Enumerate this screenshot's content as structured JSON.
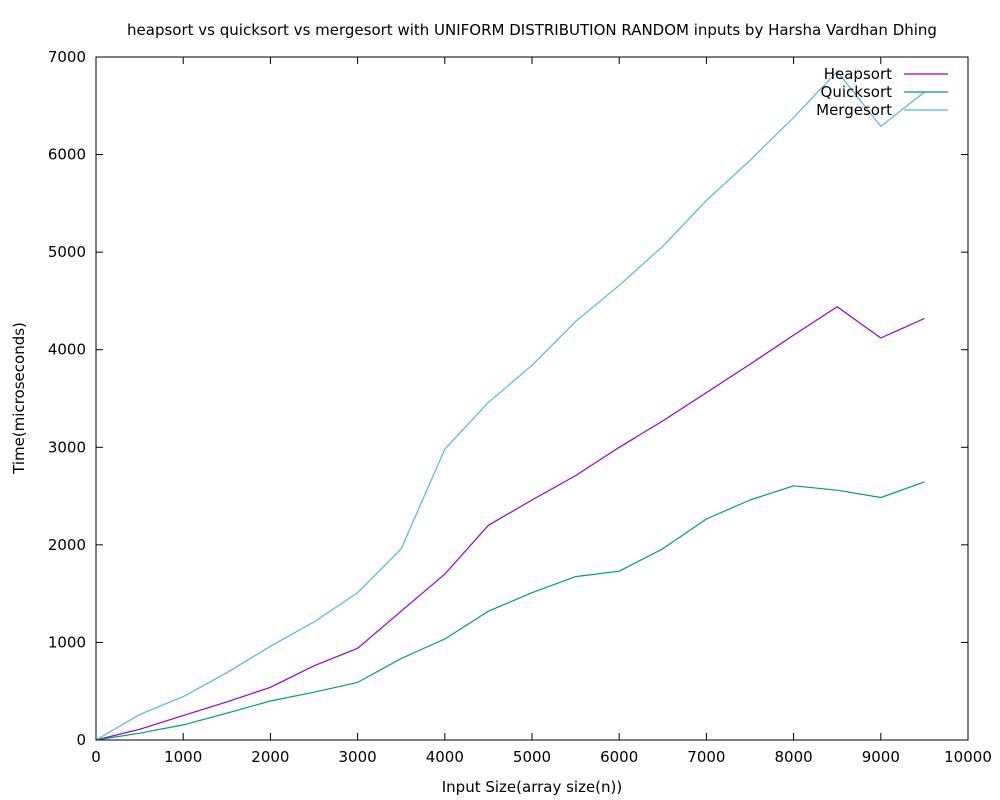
{
  "chart_data": {
    "type": "line",
    "title": "heapsort vs quicksort vs mergesort with UNIFORM DISTRIBUTION RANDOM inputs by Harsha Vardhan Dhing",
    "xlabel": "Input Size(array size(n))",
    "ylabel": "Time(microseconds)",
    "xlim": [
      0,
      10000
    ],
    "ylim": [
      0,
      7000
    ],
    "xticks": [
      "0",
      "1000",
      "2000",
      "3000",
      "4000",
      "5000",
      "6000",
      "7000",
      "8000",
      "9000",
      "10000"
    ],
    "yticks": [
      "0",
      "1000",
      "2000",
      "3000",
      "4000",
      "5000",
      "6000",
      "7000"
    ],
    "grid": false,
    "legend_position": "top-right",
    "x": [
      0,
      500,
      1000,
      1500,
      2000,
      2500,
      3000,
      3500,
      4000,
      4500,
      5000,
      5500,
      6000,
      6500,
      7000,
      7500,
      8000,
      8500,
      9000,
      9500
    ],
    "series": [
      {
        "name": "Heapsort",
        "color": "#9400d3",
        "values": [
          0,
          110,
          250,
          390,
          540,
          760,
          940,
          1320,
          1700,
          2200,
          2460,
          2710,
          3000,
          3270,
          3560,
          3850,
          4150,
          4440,
          4120,
          4320
        ]
      },
      {
        "name": "Quicksort",
        "color": "#009e73",
        "values": [
          0,
          70,
          155,
          275,
          400,
          490,
          590,
          835,
          1035,
          1320,
          1510,
          1675,
          1730,
          1960,
          2265,
          2460,
          2605,
          2560,
          2485,
          2645
        ]
      },
      {
        "name": "Mergesort",
        "color": "#56b4e9",
        "values": [
          0,
          260,
          445,
          690,
          960,
          1210,
          1510,
          1960,
          2980,
          3460,
          3840,
          4290,
          4660,
          5060,
          5530,
          5940,
          6380,
          6850,
          6290,
          6640
        ]
      }
    ]
  }
}
